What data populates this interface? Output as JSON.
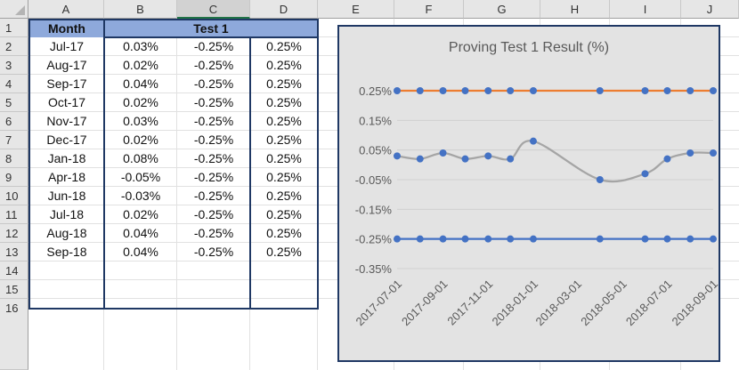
{
  "sheet": {
    "corner_icon": "select-all-triangle",
    "columns": [
      "A",
      "B",
      "C",
      "D",
      "E",
      "F",
      "G",
      "H",
      "I",
      "J"
    ],
    "selected_column": "C",
    "rows": [
      "1",
      "2",
      "3",
      "4",
      "5",
      "6",
      "7",
      "8",
      "9",
      "10",
      "11",
      "12",
      "13",
      "14",
      "15",
      "16"
    ],
    "header": {
      "month": "Month",
      "test": "Test 1"
    },
    "data_rows": [
      {
        "month": "Jul-17",
        "b": "0.03%",
        "c": "-0.25%",
        "d": "0.25%"
      },
      {
        "month": "Aug-17",
        "b": "0.02%",
        "c": "-0.25%",
        "d": "0.25%"
      },
      {
        "month": "Sep-17",
        "b": "0.04%",
        "c": "-0.25%",
        "d": "0.25%"
      },
      {
        "month": "Oct-17",
        "b": "0.02%",
        "c": "-0.25%",
        "d": "0.25%"
      },
      {
        "month": "Nov-17",
        "b": "0.03%",
        "c": "-0.25%",
        "d": "0.25%"
      },
      {
        "month": "Dec-17",
        "b": "0.02%",
        "c": "-0.25%",
        "d": "0.25%"
      },
      {
        "month": "Jan-18",
        "b": "0.08%",
        "c": "-0.25%",
        "d": "0.25%"
      },
      {
        "month": "Apr-18",
        "b": "-0.05%",
        "c": "-0.25%",
        "d": "0.25%"
      },
      {
        "month": "Jun-18",
        "b": "-0.03%",
        "c": "-0.25%",
        "d": "0.25%"
      },
      {
        "month": "Jul-18",
        "b": "0.02%",
        "c": "-0.25%",
        "d": "0.25%"
      },
      {
        "month": "Aug-18",
        "b": "0.04%",
        "c": "-0.25%",
        "d": "0.25%"
      },
      {
        "month": "Sep-18",
        "b": "0.04%",
        "c": "-0.25%",
        "d": "0.25%"
      }
    ],
    "colors": {
      "header_fill": "#8ea9db",
      "selected_col": "#d2d2d2",
      "thick_border": "#1f3864"
    }
  },
  "chart_data": {
    "type": "line",
    "title": "Proving Test 1 Result (%)",
    "x": [
      "2017-07-01",
      "2017-08-01",
      "2017-09-01",
      "2017-10-01",
      "2017-11-01",
      "2017-12-01",
      "2018-01-01",
      "2018-04-01",
      "2018-06-01",
      "2018-07-01",
      "2018-08-01",
      "2018-09-01"
    ],
    "x_ticks": [
      "2017-07-01",
      "2017-09-01",
      "2017-11-01",
      "2018-01-01",
      "2018-03-01",
      "2018-05-01",
      "2018-07-01",
      "2018-09-01"
    ],
    "x_range": [
      "2017-07-01",
      "2018-09-01"
    ],
    "y_ticks": [
      0.25,
      0.15,
      0.05,
      -0.05,
      -0.15,
      -0.25,
      -0.35
    ],
    "y_tick_labels": [
      "0.25%",
      "0.15%",
      "0.05%",
      "-0.05%",
      "-0.15%",
      "-0.25%",
      "-0.35%"
    ],
    "ylim": [
      -0.35,
      0.25
    ],
    "grid": true,
    "legend": "none",
    "series": [
      {
        "values": [
          0.03,
          0.02,
          0.04,
          0.02,
          0.03,
          0.02,
          0.08,
          -0.05,
          -0.03,
          0.02,
          0.04,
          0.04
        ],
        "line_color": "#a5a5a5",
        "marker_color": "#4472c4",
        "smooth": true
      },
      {
        "values": [
          -0.25,
          -0.25,
          -0.25,
          -0.25,
          -0.25,
          -0.25,
          -0.25,
          -0.25,
          -0.25,
          -0.25,
          -0.25,
          -0.25
        ],
        "line_color": "#4472c4",
        "marker_color": "#4472c4",
        "smooth": false
      },
      {
        "values": [
          0.25,
          0.25,
          0.25,
          0.25,
          0.25,
          0.25,
          0.25,
          0.25,
          0.25,
          0.25,
          0.25,
          0.25
        ],
        "line_color": "#ed7d31",
        "marker_color": "#4472c4",
        "smooth": false
      }
    ]
  }
}
